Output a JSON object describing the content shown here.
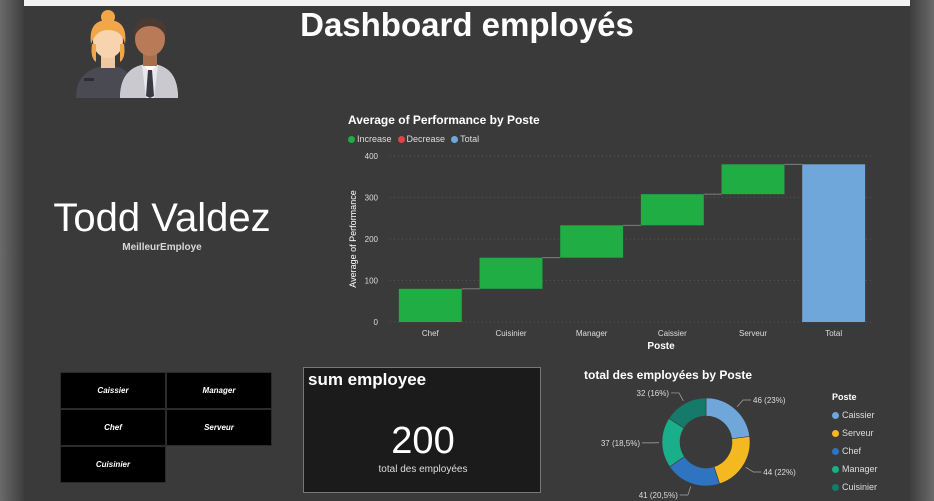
{
  "header": {
    "title": "Dashboard employés"
  },
  "best_employee": {
    "name": "Todd Valdez",
    "label": "MeilleurEmploye"
  },
  "waterfall": {
    "title": "Average of Performance by Poste",
    "legend": [
      {
        "label": "Increase",
        "color": "#1fad44"
      },
      {
        "label": "Decrease",
        "color": "#e0434a"
      },
      {
        "label": "Total",
        "color": "#6fa7db"
      }
    ]
  },
  "slicer": {
    "items": [
      {
        "label": "Caissier"
      },
      {
        "label": "Manager"
      },
      {
        "label": "Chef"
      },
      {
        "label": "Serveur"
      },
      {
        "label": "Cuisinier"
      }
    ]
  },
  "card": {
    "title": "sum employee",
    "value": "200",
    "label": "total des employées"
  },
  "donut": {
    "title": "total des employées by Poste",
    "legend_title": "Poste",
    "legend": [
      {
        "label": "Caissier",
        "color": "#6fa7db"
      },
      {
        "label": "Serveur",
        "color": "#f4b820"
      },
      {
        "label": "Chef",
        "color": "#2f74c0"
      },
      {
        "label": "Manager",
        "color": "#1aae8a"
      },
      {
        "label": "Cuisinier",
        "color": "#167a6b"
      }
    ]
  },
  "chart_data": [
    {
      "type": "bar",
      "subtype": "waterfall",
      "title": "Average of Performance by Poste",
      "xlabel": "Poste",
      "ylabel": "Average of Performance",
      "categories": [
        "Chef",
        "Cuisinier",
        "Manager",
        "Caissier",
        "Serveur",
        "Total"
      ],
      "increments": [
        80,
        75,
        78,
        75,
        72
      ],
      "total": 380,
      "ylim": [
        0,
        400
      ],
      "yticks": [
        0,
        100,
        200,
        300,
        400
      ],
      "grid": true,
      "legend_position": "top-left"
    },
    {
      "type": "pie",
      "subtype": "donut",
      "title": "total des employées by Poste",
      "categories": [
        "Caissier",
        "Serveur",
        "Chef",
        "Manager",
        "Cuisinier"
      ],
      "values": [
        46,
        44,
        41,
        37,
        32
      ],
      "labels": [
        "46 (23%)",
        "44 (22%)",
        "41 (20,5%)",
        "37 (18,5%)",
        "32 (16%)"
      ],
      "legend_position": "right"
    }
  ]
}
